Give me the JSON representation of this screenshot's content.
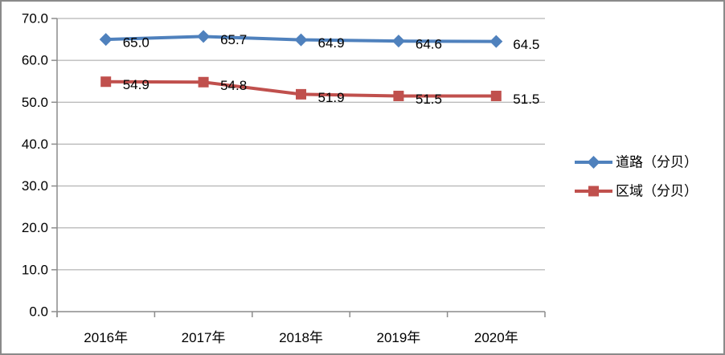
{
  "window": {
    "background": "#FFFFFF",
    "border_color": "#8A8A8A"
  },
  "chart_data": {
    "type": "line",
    "categories": [
      "2016年",
      "2017年",
      "2018年",
      "2019年",
      "2020年"
    ],
    "series": [
      {
        "name": "道路（分贝）",
        "color": "#4F81BD",
        "marker": "diamond",
        "values": [
          65.0,
          65.7,
          64.9,
          64.6,
          64.5
        ]
      },
      {
        "name": "区域（分贝）",
        "color": "#C0504D",
        "marker": "square",
        "values": [
          54.9,
          54.8,
          51.9,
          51.5,
          51.5
        ]
      }
    ],
    "ylim": [
      0,
      70
    ],
    "ytick_step": 10,
    "ytick_labels": [
      "0.0",
      "10.0",
      "20.0",
      "30.0",
      "40.0",
      "50.0",
      "60.0",
      "70.0"
    ],
    "value_label_decimals": 1,
    "data_labels_shown": true,
    "grid": true,
    "legend_position": "right",
    "legend_entries": [
      "道路（分贝）",
      "区域（分贝）"
    ]
  },
  "colors": {
    "gridline": "#A3A3A3",
    "axis": "#8C8C8C",
    "tick_text": "#000000",
    "data_label_text": "#000000",
    "legend_text": "#000000"
  }
}
